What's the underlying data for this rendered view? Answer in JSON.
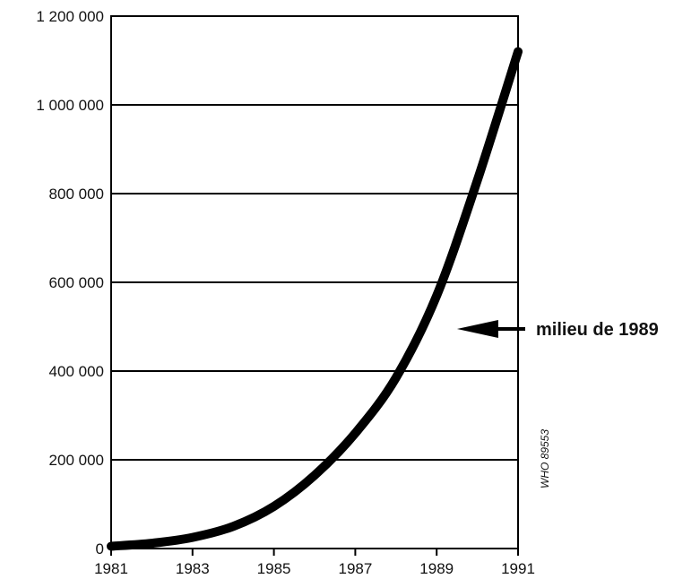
{
  "chart_data": {
    "type": "line",
    "title": "",
    "xlabel": "",
    "ylabel": "",
    "xlim": [
      1981,
      1991
    ],
    "ylim": [
      0,
      1200000
    ],
    "grid": true,
    "x_ticks": [
      "1981",
      "1983",
      "1985",
      "1987",
      "1989",
      "1991"
    ],
    "y_ticks": [
      "0",
      "200 000",
      "400 000",
      "600 000",
      "800 000",
      "1 000 000",
      "1 200 000"
    ],
    "series": [
      {
        "x": [
          1981,
          1982,
          1983,
          1984,
          1985,
          1986,
          1987,
          1988,
          1989,
          1990,
          1991
        ],
        "y": [
          5000,
          12000,
          25000,
          50000,
          95000,
          165000,
          260000,
          385000,
          570000,
          830000,
          1120000
        ]
      }
    ],
    "annotation": {
      "text": "milieu de 1989",
      "x": 1989.5,
      "y": 495000
    },
    "watermark": "WHO 89553",
    "colors": {
      "line": "#000000",
      "grid": "#000000"
    }
  }
}
